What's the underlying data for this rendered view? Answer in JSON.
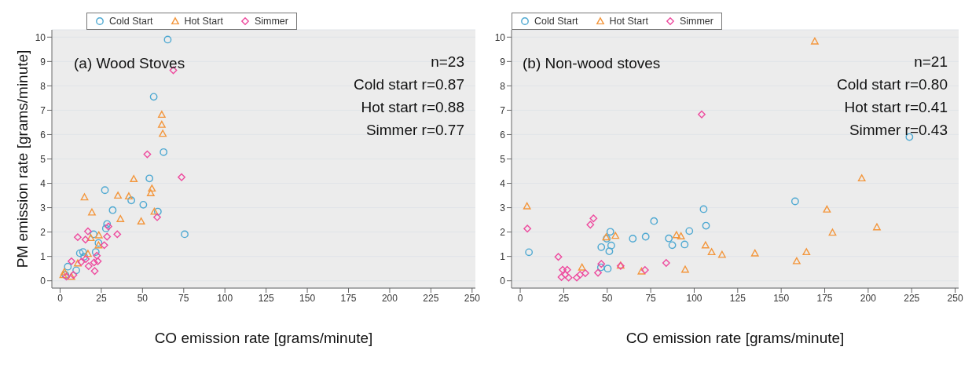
{
  "chart_data": [
    {
      "type": "scatter",
      "xlabel": "CO emission rate [grams/minute]",
      "ylabel": "PM emission rate [grams/minute]",
      "xlim": [
        -5,
        252
      ],
      "ylim": [
        -0.3,
        10.3
      ],
      "xticks": [
        0,
        25,
        50,
        75,
        100,
        125,
        150,
        175,
        200,
        225,
        250
      ],
      "yticks": [
        0,
        1,
        2,
        3,
        4,
        5,
        6,
        7,
        8,
        9,
        10
      ],
      "grid": "y",
      "legend": "top left",
      "annotations": [
        "(a) Wood Stoves",
        "n=23",
        "Cold start r=0.87",
        "Hot start r=0.88",
        "Simmer r=0.77"
      ],
      "series": [
        {
          "name": "Cold Start",
          "color": "#4fa9d2",
          "marker": "circle",
          "x": [
            65.3,
            56.8,
            62.8,
            54.2,
            27.2,
            43.2,
            50.5,
            31.9,
            59.3,
            28.5,
            27.8,
            75.6,
            20.3,
            23.3,
            21.6,
            13.9,
            12,
            14.6,
            4.7,
            9.8,
            3.2
          ],
          "values": [
            9.9,
            7.55,
            5.28,
            4.2,
            3.72,
            3.3,
            3.12,
            2.9,
            2.84,
            2.33,
            2.15,
            1.91,
            1.91,
            1.55,
            1.18,
            1.18,
            1.13,
            0.99,
            0.58,
            0.43,
            0.24
          ]
        },
        {
          "name": "Hot Start",
          "color": "#f3963c",
          "marker": "triangle",
          "x": [
            61.7,
            61.7,
            62.3,
            44.7,
            55.7,
            55,
            14.8,
            35.1,
            41.7,
            19.3,
            57.2,
            36.6,
            49.2,
            23.5,
            18.6,
            23.3,
            16.9,
            10.7,
            2.6,
            1.9,
            6.8
          ],
          "values": [
            6.82,
            6.41,
            6.04,
            4.18,
            3.79,
            3.6,
            3.43,
            3.5,
            3.47,
            2.81,
            2.84,
            2.54,
            2.44,
            1.87,
            1.76,
            1.46,
            1.11,
            0.72,
            0.36,
            0.24,
            0.17
          ]
        },
        {
          "name": "Simmer",
          "color": "#ee4a9e",
          "marker": "diamond",
          "x": [
            68.7,
            52.9,
            73.7,
            58.9,
            29.3,
            34.7,
            16.9,
            10.7,
            15.4,
            28.5,
            26.8,
            22.3,
            15.6,
            17.3,
            20.6,
            22.9,
            21,
            12.8,
            6.9,
            8.1,
            3.8
          ],
          "values": [
            8.64,
            5.19,
            4.25,
            2.61,
            2.23,
            1.91,
            2.03,
            1.79,
            1.69,
            1.81,
            1.46,
            1.03,
            0.89,
            0.6,
            0.75,
            0.8,
            0.4,
            0.77,
            0.8,
            0.24,
            0.17
          ]
        }
      ]
    },
    {
      "type": "scatter",
      "xlabel": "CO emission rate [grams/minute]",
      "xlim": [
        -5,
        252
      ],
      "ylim": [
        -0.3,
        10.3
      ],
      "xticks": [
        0,
        25,
        50,
        75,
        100,
        125,
        150,
        175,
        200,
        225,
        250
      ],
      "yticks": [
        0,
        1,
        2,
        3,
        4,
        5,
        6,
        7,
        8,
        9,
        10
      ],
      "grid": "y",
      "legend": "top left",
      "annotations": [
        "(b) Non-wood stoves",
        "n=21",
        "Cold start r=0.80",
        "Hot start r=0.41",
        "Simmer r=0.43"
      ],
      "series": [
        {
          "name": "Cold Start",
          "color": "#4fa9d2",
          "marker": "circle",
          "x": [
            223.7,
            158,
            105.4,
            106.8,
            76.9,
            97.2,
            51.8,
            49.7,
            64.7,
            72.1,
            85.4,
            87.4,
            94.5,
            52.3,
            46.6,
            51.2,
            5,
            50.3,
            46.4
          ],
          "values": [
            5.9,
            3.26,
            2.94,
            2.26,
            2.45,
            2.04,
            2.01,
            1.73,
            1.73,
            1.81,
            1.74,
            1.46,
            1.49,
            1.45,
            1.38,
            1.21,
            1.17,
            0.5,
            0.55
          ]
        },
        {
          "name": "Hot Start",
          "color": "#f3963c",
          "marker": "triangle",
          "x": [
            169.3,
            196.3,
            3.9,
            176.3,
            205,
            179.5,
            54.7,
            49.4,
            89.8,
            92.4,
            106.5,
            110,
            116,
            134.9,
            164.5,
            158.9,
            94.8,
            35.5,
            69.7,
            57.7
          ],
          "values": [
            9.83,
            4.21,
            3.06,
            2.93,
            2.2,
            1.98,
            1.85,
            1.79,
            1.88,
            1.83,
            1.46,
            1.18,
            1.07,
            1.13,
            1.18,
            0.81,
            0.46,
            0.55,
            0.39,
            0.63
          ]
        },
        {
          "name": "Simmer",
          "color": "#ee4a9e",
          "marker": "diamond",
          "x": [
            104.3,
            42.1,
            40.3,
            4.1,
            21.9,
            46.6,
            57.7,
            83.9,
            71.7,
            44.7,
            24.4,
            27,
            23.7,
            27.8,
            25.9,
            32.5,
            34.4,
            37.4
          ],
          "values": [
            6.83,
            2.56,
            2.3,
            2.14,
            0.98,
            0.69,
            0.61,
            0.73,
            0.44,
            0.33,
            0.45,
            0.45,
            0.15,
            0.13,
            0.25,
            0.13,
            0.25,
            0.31
          ]
        }
      ]
    }
  ]
}
